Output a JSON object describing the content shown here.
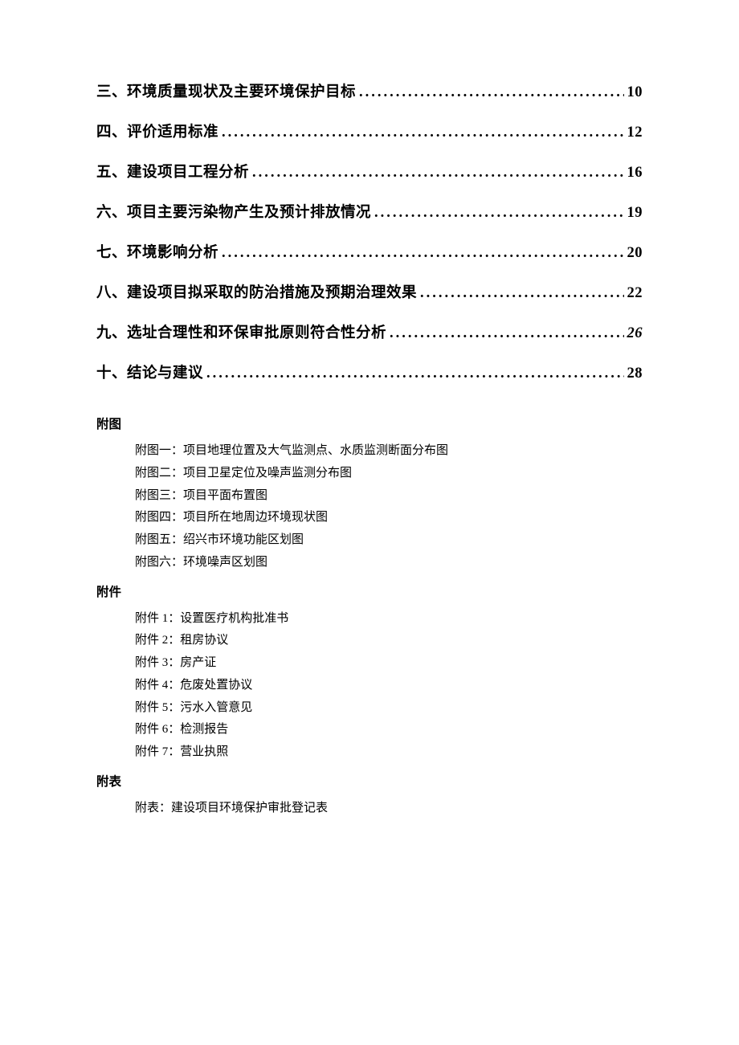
{
  "toc": [
    {
      "label": "三、环境质量现状及主要环境保护目标",
      "page": "10",
      "italic": false
    },
    {
      "label": "四、评价适用标准",
      "page": "12",
      "italic": false
    },
    {
      "label": "五、建设项目工程分析",
      "page": "16",
      "italic": false
    },
    {
      "label": "六、项目主要污染物产生及预计排放情况",
      "page": "19",
      "italic": false
    },
    {
      "label": "七、环境影响分析",
      "page": "20",
      "italic": false
    },
    {
      "label": "八、建设项目拟采取的防治措施及预期治理效果",
      "page": "22",
      "italic": false
    },
    {
      "label": "九、选址合理性和环保审批原则符合性分析",
      "page": "26",
      "italic": true
    },
    {
      "label": "十、结论与建议",
      "page": "28",
      "italic": false
    }
  ],
  "sections": {
    "futu": {
      "heading": "附图",
      "items": [
        "附图一：项目地理位置及大气监测点、水质监测断面分布图",
        "附图二：项目卫星定位及噪声监测分布图",
        "附图三：项目平面布置图",
        "附图四：项目所在地周边环境现状图",
        "附图五：绍兴市环境功能区划图",
        "附图六：环境噪声区划图"
      ]
    },
    "fujian": {
      "heading": "附件",
      "items": [
        "附件 1：设置医疗机构批准书",
        "附件 2：租房协议",
        "附件 3：房产证",
        "附件 4：危废处置协议",
        "附件 5：污水入管意见",
        "附件 6：检测报告",
        "附件 7：营业执照"
      ]
    },
    "fubiao": {
      "heading": "附表",
      "items": [
        "附表：建设项目环境保护审批登记表"
      ]
    }
  }
}
